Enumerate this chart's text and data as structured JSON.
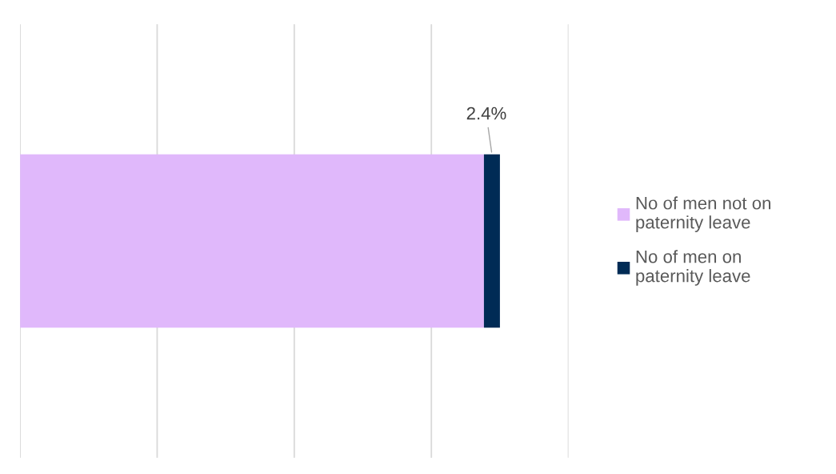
{
  "chart_data": {
    "type": "bar",
    "orientation": "horizontal",
    "stacked": true,
    "categories": [
      null
    ],
    "series": [
      {
        "name": "No of men not on\npaternity leave",
        "color": "#e0b8fb",
        "values": [
          69.6
        ]
      },
      {
        "name": "No of men on\npaternity leave",
        "color": "#002b55",
        "values": [
          2.4
        ],
        "value_labels": [
          "2.4%"
        ]
      }
    ],
    "grid": "x",
    "legend": "right"
  }
}
